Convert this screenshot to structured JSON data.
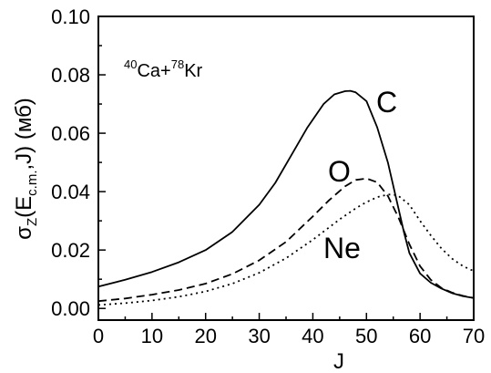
{
  "chart_data": {
    "type": "line",
    "title": "",
    "xlabel": "J",
    "ylabel": {
      "base": "σ",
      "sub1": "Z",
      "mid": "(E",
      "sub2": "c.m.",
      "tail": ",J) (мб)"
    },
    "annotation": {
      "sup1": "40",
      "el1": "Ca+",
      "sup2": "78",
      "el2": "Kr"
    },
    "xlim": [
      0,
      70
    ],
    "ylim": [
      -0.004,
      0.1
    ],
    "xticks": [
      0,
      10,
      20,
      30,
      40,
      50,
      60,
      70
    ],
    "xtick_labels": [
      "0",
      "10",
      "20",
      "30",
      "40",
      "50",
      "60",
      "70"
    ],
    "yticks": [
      0.0,
      0.02,
      0.04,
      0.06,
      0.08,
      0.1
    ],
    "ytick_labels": [
      "0.00",
      "0.02",
      "0.04",
      "0.06",
      "0.08",
      "0.10"
    ],
    "grid": false,
    "series": [
      {
        "name": "C",
        "style": "solid",
        "x": [
          0,
          5,
          10,
          15,
          20,
          25,
          30,
          33,
          36,
          39,
          42,
          44,
          46,
          47,
          48,
          50,
          52,
          54,
          56,
          57,
          58,
          60,
          62,
          64,
          66,
          68,
          70
        ],
        "y": [
          0.0075,
          0.0098,
          0.0125,
          0.0158,
          0.02,
          0.0262,
          0.0355,
          0.043,
          0.0525,
          0.062,
          0.07,
          0.0733,
          0.0744,
          0.0745,
          0.074,
          0.071,
          0.062,
          0.05,
          0.034,
          0.026,
          0.019,
          0.012,
          0.0088,
          0.0068,
          0.0052,
          0.0042,
          0.0036
        ]
      },
      {
        "name": "O",
        "style": "dashed",
        "x": [
          0,
          5,
          10,
          15,
          20,
          25,
          30,
          35,
          40,
          43,
          46,
          48,
          50,
          52,
          54,
          56,
          58,
          60,
          62,
          64,
          66,
          68,
          70
        ],
        "y": [
          0.0025,
          0.0034,
          0.0047,
          0.0063,
          0.0085,
          0.0118,
          0.0165,
          0.0228,
          0.0315,
          0.037,
          0.0418,
          0.044,
          0.0445,
          0.0432,
          0.0385,
          0.031,
          0.022,
          0.0145,
          0.0098,
          0.007,
          0.0054,
          0.0043,
          0.0036
        ]
      },
      {
        "name": "Ne",
        "style": "dotted",
        "x": [
          0,
          5,
          10,
          15,
          20,
          25,
          30,
          35,
          40,
          45,
          48,
          50,
          52,
          54,
          55,
          56,
          58,
          60,
          62,
          64,
          66,
          68,
          70
        ],
        "y": [
          0.0012,
          0.0018,
          0.0027,
          0.004,
          0.0058,
          0.0085,
          0.0122,
          0.0172,
          0.0235,
          0.0305,
          0.0343,
          0.0364,
          0.0381,
          0.039,
          0.039,
          0.0385,
          0.0355,
          0.03,
          0.025,
          0.0205,
          0.017,
          0.0145,
          0.0128
        ]
      }
    ]
  }
}
